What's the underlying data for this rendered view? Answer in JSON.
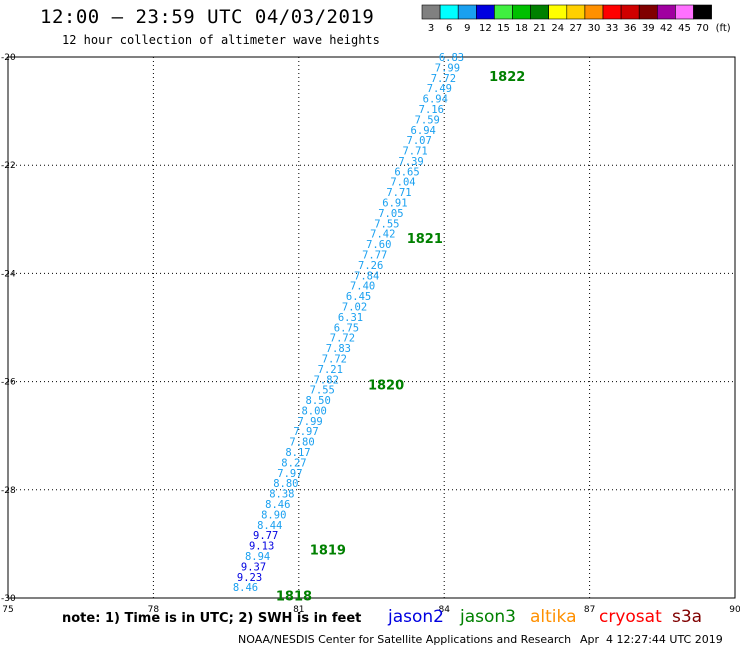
{
  "header": {
    "title": "12:00 – 23:59 UTC 04/03/2019",
    "subtitle": "12 hour collection of altimeter wave heights"
  },
  "legend": {
    "bins": [
      {
        "label": "3",
        "color": "#808080"
      },
      {
        "label": "6",
        "color": "#00ffff"
      },
      {
        "label": "9",
        "color": "#1aa0f0"
      },
      {
        "label": "12",
        "color": "#0000e0"
      },
      {
        "label": "15",
        "color": "#40f040"
      },
      {
        "label": "18",
        "color": "#00c000"
      },
      {
        "label": "21",
        "color": "#008000"
      },
      {
        "label": "24",
        "color": "#ffff00"
      },
      {
        "label": "27",
        "color": "#ffd000"
      },
      {
        "label": "30",
        "color": "#ff9000"
      },
      {
        "label": "33",
        "color": "#ff0000"
      },
      {
        "label": "36",
        "color": "#d00000"
      },
      {
        "label": "39",
        "color": "#800000"
      },
      {
        "label": "42",
        "color": "#a000a0"
      },
      {
        "label": "45",
        "color": "#ff70ff"
      },
      {
        "label": "70",
        "color": "#000000"
      }
    ],
    "unit": "(ft)"
  },
  "chart_data": {
    "type": "scatter",
    "title": "12:00 – 23:59 UTC 04/03/2019",
    "subtitle": "12 hour collection of altimeter wave heights",
    "xlabel": "",
    "ylabel": "",
    "xlim": [
      75,
      90
    ],
    "ylim": [
      -30,
      -20
    ],
    "x_ticks": [
      75,
      78,
      81,
      84,
      87,
      90
    ],
    "y_ticks": [
      -20,
      -22,
      -24,
      -26,
      -28,
      -30
    ],
    "x_tick_labels": [
      "75",
      "78",
      "81",
      "84",
      "87",
      "90"
    ],
    "y_tick_labels": [
      "-20",
      "-22",
      "-24",
      "-26",
      "-28",
      "-30"
    ],
    "grid": true,
    "track": {
      "start": [
        79.9,
        -29.8
      ],
      "end": [
        84.15,
        -20.0
      ]
    },
    "swh_values": [
      "8.46",
      "9.23",
      "9.37",
      "8.94",
      "9.13",
      "9.77",
      "8.44",
      "8.90",
      "8.46",
      "8.38",
      "8.80",
      "7.97",
      "8.27",
      "8.17",
      "7.80",
      "7.97",
      "7.99",
      "8.00",
      "8.50",
      "7.55",
      "7.82",
      "7.21",
      "7.72",
      "7.83",
      "7.72",
      "6.75",
      "6.31",
      "7.02",
      "6.45",
      "7.40",
      "7.84",
      "7.26",
      "7.77",
      "7.60",
      "7.42",
      "7.55",
      "7.05",
      "6.91",
      "7.71",
      "7.04",
      "6.65",
      "7.39",
      "7.71",
      "7.07",
      "6.94",
      "7.59",
      "7.16",
      "6.94",
      "7.49",
      "7.72",
      "7.99",
      "6.83"
    ],
    "swh_colors": [
      "#1aa0f0",
      "#0000e0",
      "#0000e0",
      "#1aa0f0",
      "#0000e0",
      "#0000e0",
      "#1aa0f0",
      "#1aa0f0",
      "#1aa0f0",
      "#1aa0f0",
      "#1aa0f0",
      "#1aa0f0",
      "#1aa0f0",
      "#1aa0f0",
      "#1aa0f0",
      "#1aa0f0",
      "#1aa0f0",
      "#1aa0f0",
      "#1aa0f0",
      "#1aa0f0",
      "#1aa0f0",
      "#1aa0f0",
      "#1aa0f0",
      "#1aa0f0",
      "#1aa0f0",
      "#1aa0f0",
      "#1aa0f0",
      "#1aa0f0",
      "#1aa0f0",
      "#1aa0f0",
      "#1aa0f0",
      "#1aa0f0",
      "#1aa0f0",
      "#1aa0f0",
      "#1aa0f0",
      "#1aa0f0",
      "#1aa0f0",
      "#1aa0f0",
      "#1aa0f0",
      "#1aa0f0",
      "#1aa0f0",
      "#1aa0f0",
      "#1aa0f0",
      "#1aa0f0",
      "#1aa0f0",
      "#1aa0f0",
      "#1aa0f0",
      "#1aa0f0",
      "#1aa0f0",
      "#1aa0f0",
      "#1aa0f0",
      "#1aa0f0"
    ],
    "hour_markers": [
      {
        "label": "1818",
        "lon": 80.9,
        "lat": -29.95
      },
      {
        "label": "1819",
        "lon": 81.6,
        "lat": -29.1
      },
      {
        "label": "1820",
        "lon": 82.8,
        "lat": -26.05
      },
      {
        "label": "1821",
        "lon": 83.6,
        "lat": -23.35
      },
      {
        "label": "1822",
        "lon": 85.3,
        "lat": -20.35
      }
    ],
    "marker_color": "#008000"
  },
  "footer": {
    "note": "note: 1) Time is in UTC; 2) SWH is in feet",
    "satellites": [
      {
        "name": "jason2",
        "color": "#0000e0"
      },
      {
        "name": "jason3",
        "color": "#008000"
      },
      {
        "name": "altika",
        "color": "#ff9000"
      },
      {
        "name": "cryosat",
        "color": "#ff0000"
      },
      {
        "name": "s3a",
        "color": "#800000"
      }
    ],
    "credit": "NOAA/NESDIS Center for Satellite Applications and Research",
    "timestamp": "Apr  4 12:27:44 UTC 2019"
  }
}
